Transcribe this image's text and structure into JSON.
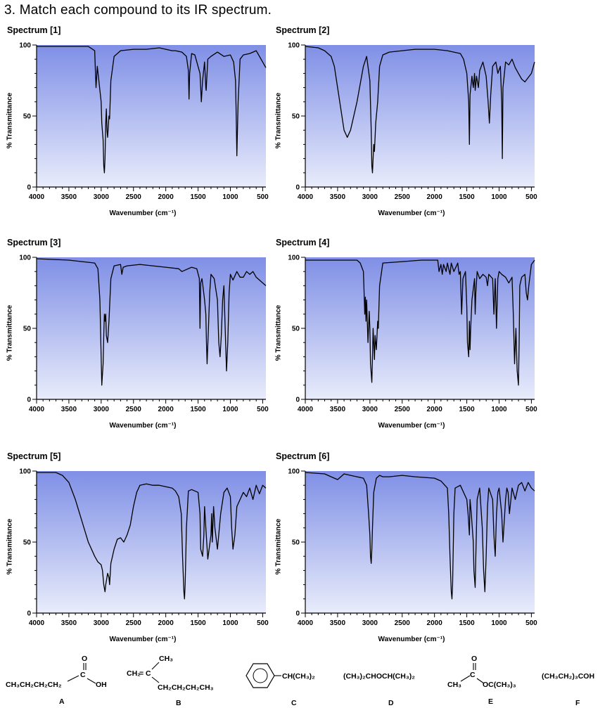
{
  "question": "3. Match each compound to its IR spectrum.",
  "chart_data": [
    {
      "type": "line",
      "title": "Spectrum [1]",
      "xlabel": "Wavenumber (cm⁻¹)",
      "ylabel": "% Transmittance",
      "xlim": [
        4000,
        450
      ],
      "ylim": [
        0,
        100
      ],
      "xticks": [
        4000,
        3500,
        3000,
        2500,
        2000,
        1500,
        1000,
        500
      ],
      "yticks": [
        0,
        50,
        100
      ],
      "x": [
        4000,
        3200,
        3100,
        3090,
        3080,
        3060,
        3000,
        2990,
        2970,
        2960,
        2950,
        2940,
        2930,
        2920,
        2910,
        2900,
        2880,
        2870,
        2850,
        2800,
        2700,
        2500,
        2300,
        2100,
        2000,
        1900,
        1850,
        1750,
        1680,
        1650,
        1640,
        1630,
        1600,
        1550,
        1470,
        1460,
        1450,
        1430,
        1400,
        1380,
        1375,
        1370,
        1350,
        1300,
        1200,
        1100,
        1000,
        950,
        920,
        910,
        900,
        880,
        850,
        800,
        700,
        600,
        500,
        450
      ],
      "y": [
        99,
        99,
        96,
        82,
        70,
        85,
        60,
        45,
        33,
        15,
        10,
        20,
        45,
        55,
        40,
        35,
        50,
        48,
        75,
        92,
        96,
        97,
        97,
        98,
        97,
        96,
        96,
        95,
        92,
        82,
        62,
        80,
        94,
        93,
        80,
        70,
        60,
        75,
        88,
        70,
        68,
        72,
        90,
        92,
        95,
        92,
        93,
        88,
        75,
        50,
        22,
        60,
        90,
        93,
        94,
        96,
        88,
        84
      ]
    },
    {
      "type": "line",
      "title": "Spectrum [2]",
      "xlabel": "Wavenumber (cm⁻¹)",
      "ylabel": "% Transmittance",
      "xlim": [
        4000,
        450
      ],
      "ylim": [
        0,
        100
      ],
      "xticks": [
        4000,
        3500,
        3000,
        2500,
        2000,
        1500,
        1000,
        500
      ],
      "yticks": [
        0,
        50,
        100
      ],
      "x": [
        4000,
        3800,
        3700,
        3600,
        3550,
        3500,
        3450,
        3400,
        3350,
        3300,
        3200,
        3100,
        3050,
        3000,
        2980,
        2970,
        2960,
        2940,
        2930,
        2910,
        2880,
        2850,
        2800,
        2700,
        2500,
        2300,
        2000,
        1800,
        1600,
        1550,
        1500,
        1470,
        1460,
        1450,
        1420,
        1400,
        1380,
        1370,
        1350,
        1320,
        1300,
        1250,
        1200,
        1170,
        1150,
        1130,
        1100,
        1050,
        1020,
        980,
        960,
        950,
        940,
        900,
        850,
        800,
        750,
        700,
        650,
        600,
        500,
        450
      ],
      "y": [
        99,
        98,
        96,
        92,
        85,
        70,
        55,
        40,
        35,
        40,
        60,
        85,
        92,
        75,
        40,
        15,
        10,
        30,
        25,
        45,
        60,
        85,
        93,
        95,
        96,
        97,
        97,
        96,
        94,
        90,
        80,
        60,
        30,
        65,
        78,
        70,
        80,
        68,
        78,
        70,
        82,
        88,
        78,
        60,
        45,
        65,
        85,
        88,
        80,
        85,
        60,
        20,
        70,
        88,
        86,
        90,
        84,
        80,
        76,
        74,
        80,
        88
      ]
    },
    {
      "type": "line",
      "title": "Spectrum [3]",
      "xlabel": "Wavenumber (cm⁻¹)",
      "ylabel": "% Transmittance",
      "xlim": [
        4000,
        450
      ],
      "ylim": [
        0,
        100
      ],
      "xticks": [
        4000,
        3500,
        3000,
        2500,
        2000,
        1500,
        1000,
        500
      ],
      "yticks": [
        0,
        50,
        100
      ],
      "x": [
        4000,
        3500,
        3100,
        3050,
        3020,
        3000,
        2990,
        2970,
        2960,
        2950,
        2940,
        2930,
        2920,
        2900,
        2880,
        2870,
        2850,
        2800,
        2700,
        2680,
        2660,
        2600,
        2400,
        2200,
        2000,
        1800,
        1750,
        1600,
        1520,
        1480,
        1470,
        1460,
        1440,
        1420,
        1400,
        1380,
        1370,
        1360,
        1340,
        1320,
        1300,
        1250,
        1200,
        1180,
        1160,
        1140,
        1120,
        1100,
        1080,
        1060,
        1040,
        1020,
        1000,
        960,
        900,
        850,
        800,
        750,
        700,
        650,
        600,
        500,
        450
      ],
      "y": [
        99,
        98,
        96,
        92,
        70,
        30,
        10,
        25,
        45,
        60,
        55,
        60,
        45,
        40,
        55,
        65,
        85,
        94,
        95,
        88,
        93,
        94,
        95,
        94,
        93,
        92,
        90,
        93,
        92,
        85,
        50,
        82,
        85,
        78,
        70,
        60,
        40,
        25,
        50,
        75,
        88,
        85,
        70,
        40,
        30,
        45,
        70,
        80,
        50,
        20,
        40,
        75,
        88,
        84,
        90,
        86,
        86,
        90,
        88,
        90,
        86,
        82,
        80
      ]
    },
    {
      "type": "line",
      "title": "Spectrum [4]",
      "xlabel": "Wavenumber (cm⁻¹)",
      "ylabel": "% Transmittance",
      "xlim": [
        4000,
        450
      ],
      "ylim": [
        0,
        100
      ],
      "xticks": [
        4000,
        3500,
        3000,
        2500,
        2000,
        1500,
        1000,
        500
      ],
      "yticks": [
        0,
        50,
        100
      ],
      "x": [
        4000,
        3200,
        3150,
        3100,
        3090,
        3080,
        3070,
        3060,
        3050,
        3030,
        3010,
        3000,
        2990,
        2970,
        2960,
        2950,
        2930,
        2920,
        2900,
        2880,
        2870,
        2850,
        2800,
        2500,
        2200,
        1950,
        1930,
        1900,
        1880,
        1860,
        1820,
        1800,
        1760,
        1740,
        1700,
        1640,
        1620,
        1600,
        1580,
        1560,
        1520,
        1500,
        1490,
        1470,
        1460,
        1450,
        1440,
        1420,
        1380,
        1370,
        1360,
        1340,
        1300,
        1250,
        1200,
        1180,
        1160,
        1100,
        1080,
        1060,
        1040,
        1020,
        1000,
        960,
        900,
        850,
        800,
        780,
        760,
        740,
        720,
        700,
        690,
        680,
        650,
        600,
        580,
        560,
        540,
        500,
        450
      ],
      "y": [
        98,
        98,
        96,
        90,
        75,
        60,
        72,
        55,
        70,
        40,
        62,
        50,
        25,
        12,
        30,
        50,
        28,
        45,
        35,
        55,
        50,
        80,
        96,
        97,
        98,
        98,
        90,
        95,
        88,
        95,
        90,
        96,
        88,
        96,
        90,
        96,
        88,
        90,
        60,
        85,
        90,
        65,
        40,
        30,
        55,
        35,
        50,
        70,
        85,
        60,
        75,
        90,
        85,
        88,
        86,
        80,
        88,
        85,
        60,
        85,
        50,
        85,
        90,
        88,
        86,
        82,
        86,
        60,
        25,
        50,
        20,
        10,
        40,
        80,
        86,
        88,
        75,
        70,
        80,
        95,
        98
      ]
    },
    {
      "type": "line",
      "title": "Spectrum [5]",
      "xlabel": "Wavenumber (cm⁻¹)",
      "ylabel": "% Transmittance",
      "xlim": [
        4000,
        450
      ],
      "ylim": [
        0,
        100
      ],
      "xticks": [
        4000,
        3500,
        3000,
        2500,
        2000,
        1500,
        1000,
        500
      ],
      "yticks": [
        0,
        50,
        100
      ],
      "x": [
        4000,
        3800,
        3700,
        3600,
        3500,
        3400,
        3300,
        3200,
        3100,
        3050,
        3000,
        2980,
        2960,
        2940,
        2930,
        2900,
        2880,
        2870,
        2850,
        2800,
        2750,
        2700,
        2650,
        2600,
        2550,
        2500,
        2450,
        2400,
        2300,
        2200,
        2100,
        2000,
        1900,
        1850,
        1800,
        1760,
        1740,
        1720,
        1710,
        1700,
        1680,
        1650,
        1600,
        1500,
        1470,
        1460,
        1430,
        1410,
        1400,
        1380,
        1350,
        1300,
        1290,
        1280,
        1260,
        1240,
        1200,
        1150,
        1100,
        1050,
        1000,
        980,
        960,
        930,
        900,
        850,
        800,
        750,
        700,
        650,
        600,
        550,
        500,
        450
      ],
      "y": [
        99,
        99,
        99,
        97,
        92,
        80,
        65,
        50,
        40,
        36,
        34,
        30,
        20,
        15,
        20,
        28,
        25,
        20,
        35,
        45,
        52,
        53,
        50,
        55,
        62,
        75,
        85,
        90,
        91,
        90,
        90,
        89,
        88,
        86,
        82,
        70,
        40,
        15,
        10,
        20,
        60,
        86,
        87,
        85,
        70,
        45,
        40,
        55,
        75,
        60,
        38,
        55,
        70,
        50,
        75,
        60,
        45,
        70,
        85,
        88,
        82,
        60,
        45,
        55,
        75,
        80,
        85,
        82,
        88,
        80,
        90,
        84,
        90,
        88
      ]
    },
    {
      "type": "line",
      "title": "Spectrum [6]",
      "xlabel": "Wavenumber (cm⁻¹)",
      "ylabel": "% Transmittance",
      "xlim": [
        4000,
        450
      ],
      "ylim": [
        0,
        100
      ],
      "xticks": [
        4000,
        3500,
        3000,
        2500,
        2000,
        1500,
        1000,
        500
      ],
      "yticks": [
        0,
        50,
        100
      ],
      "x": [
        4000,
        3700,
        3600,
        3500,
        3450,
        3400,
        3300,
        3200,
        3100,
        3050,
        3020,
        3000,
        2990,
        2980,
        2970,
        2960,
        2940,
        2900,
        2850,
        2800,
        2700,
        2500,
        2300,
        2000,
        1900,
        1800,
        1780,
        1760,
        1740,
        1730,
        1720,
        1700,
        1680,
        1600,
        1550,
        1500,
        1480,
        1460,
        1450,
        1430,
        1400,
        1390,
        1370,
        1360,
        1340,
        1300,
        1260,
        1240,
        1220,
        1200,
        1180,
        1160,
        1100,
        1080,
        1060,
        1040,
        1020,
        1000,
        960,
        940,
        900,
        880,
        860,
        840,
        800,
        750,
        700,
        650,
        600,
        550,
        500,
        450
      ],
      "y": [
        99,
        98,
        96,
        94,
        96,
        98,
        97,
        96,
        95,
        90,
        70,
        55,
        40,
        35,
        45,
        60,
        85,
        95,
        97,
        96,
        96,
        97,
        96,
        95,
        93,
        88,
        70,
        40,
        15,
        10,
        20,
        70,
        88,
        90,
        85,
        80,
        70,
        55,
        80,
        70,
        50,
        30,
        18,
        40,
        80,
        88,
        60,
        30,
        15,
        40,
        75,
        88,
        80,
        55,
        40,
        70,
        85,
        88,
        70,
        50,
        80,
        88,
        85,
        70,
        88,
        80,
        90,
        92,
        86,
        92,
        88,
        86
      ]
    }
  ],
  "compounds": [
    {
      "letter": "A",
      "formula": "CH3CH2CH2CH2COOH",
      "parts": {
        "chain": "CH₃CH₂CH₂CH₂",
        "c": "C",
        "o": "O",
        "oh": "OH"
      }
    },
    {
      "letter": "B",
      "parts": {
        "ch2": "CH₂",
        "eq": "=",
        "c": "C",
        "ch3": "CH₃",
        "chain": "CH₂CH₂CH₂CH₃"
      }
    },
    {
      "letter": "C",
      "parts": {
        "sub": "CH(CH₃)₂"
      }
    },
    {
      "letter": "D",
      "formula": "(CH₃)₂CHOCH(CH₃)₂"
    },
    {
      "letter": "E",
      "parts": {
        "ch3": "CH₃",
        "c": "C",
        "o": "O",
        "ester": "OC(CH₃)₃"
      }
    },
    {
      "letter": "F",
      "formula": "(CH₃CH₂)₃COH"
    }
  ]
}
